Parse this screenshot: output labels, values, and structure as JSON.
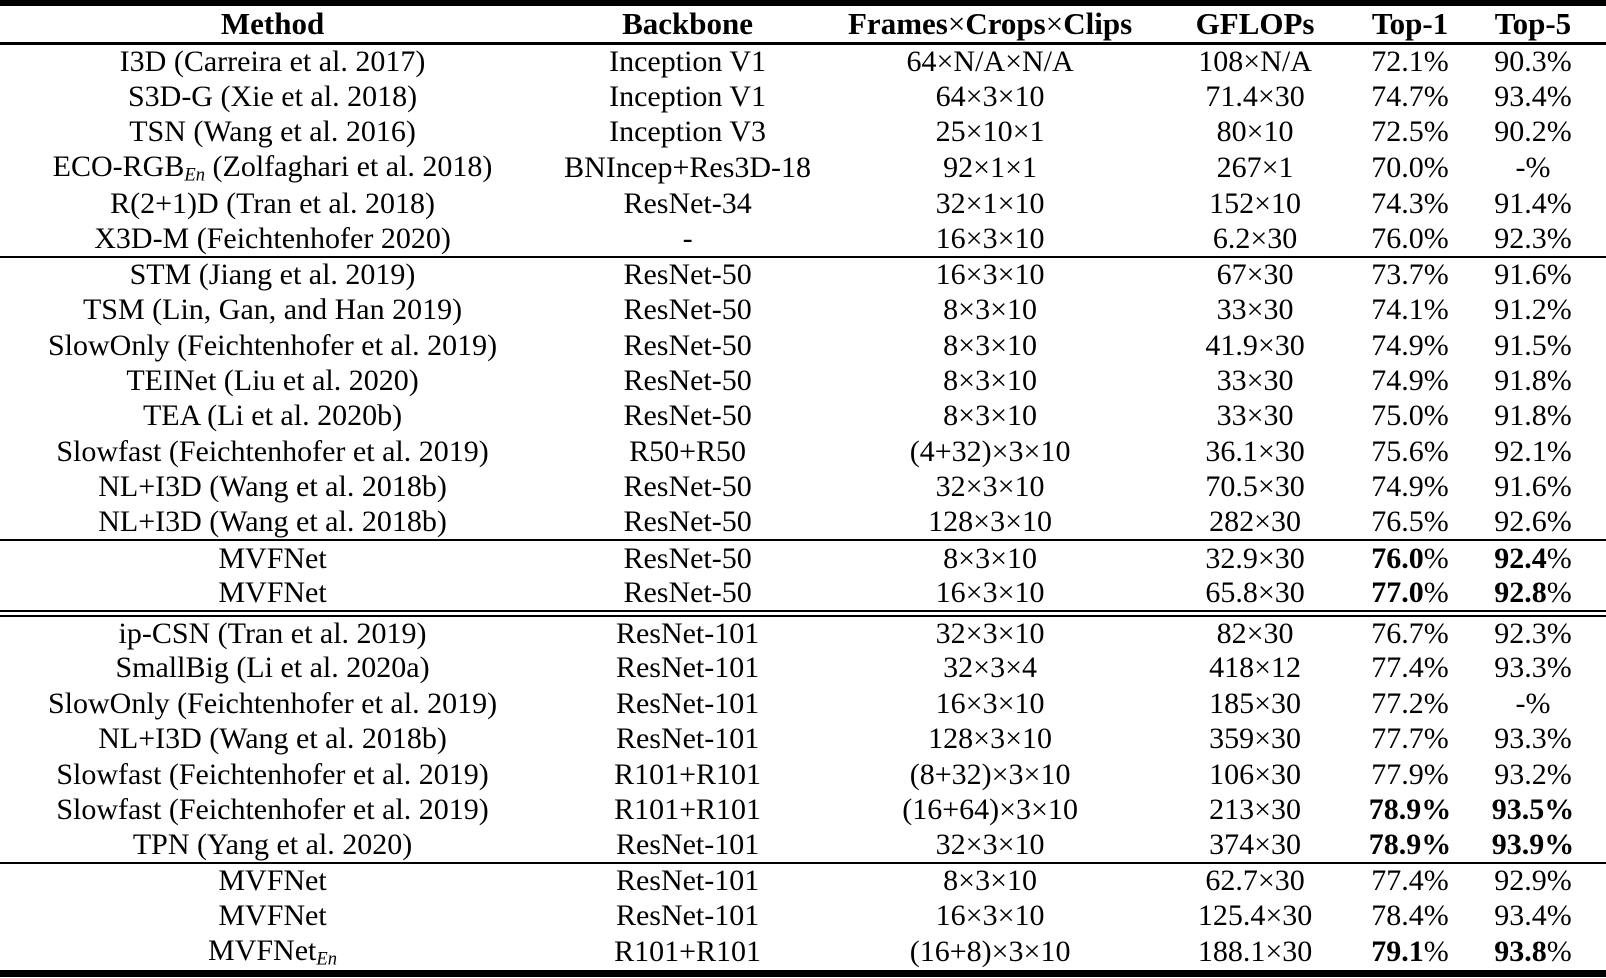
{
  "table": {
    "columns": [
      {
        "key": "method",
        "label": "Method"
      },
      {
        "key": "backbone",
        "label": "Backbone"
      },
      {
        "key": "frames",
        "label": "Frames×Crops×Clips"
      },
      {
        "key": "gflops",
        "label": "GFLOPs"
      },
      {
        "key": "top1",
        "label": "Top-1"
      },
      {
        "key": "top5",
        "label": "Top-5"
      }
    ],
    "bold_legend": {
      "0": "regular",
      "1": "accuracy digits bold, % regular",
      "2": "accuracy fully bold"
    },
    "groups": [
      {
        "rows": [
          {
            "cells": [
              "I3D (Carreira et al. 2017)",
              "Inception V1",
              "64×N/A×N/A",
              "108×N/A",
              "72.1%",
              "90.3%"
            ],
            "b": 0
          },
          {
            "cells": [
              "S3D-G (Xie et al. 2018)",
              "Inception V1",
              "64×3×10",
              "71.4×30",
              "74.7%",
              "93.4%"
            ],
            "b": 0
          },
          {
            "cells": [
              "TSN (Wang et al. 2016)",
              "Inception V3",
              "25×10×1",
              "80×10",
              "72.5%",
              "90.2%"
            ],
            "b": 0
          },
          {
            "cells": [
              "ECO-RGB_{En} (Zolfaghari et al. 2018)",
              "BNIncep+Res3D-18",
              "92×1×1",
              "267×1",
              "70.0%",
              "-%"
            ],
            "b": 0
          },
          {
            "cells": [
              "R(2+1)D (Tran et al. 2018)",
              "ResNet-34",
              "32×1×10",
              "152×10",
              "74.3%",
              "91.4%"
            ],
            "b": 0
          },
          {
            "cells": [
              "X3D-M (Feichtenhofer 2020)",
              "-",
              "16×3×10",
              "6.2×30",
              "76.0%",
              "92.3%"
            ],
            "b": 0
          }
        ]
      },
      {
        "rows": [
          {
            "cells": [
              "STM (Jiang et al. 2019)",
              "ResNet-50",
              "16×3×10",
              "67×30",
              "73.7%",
              "91.6%"
            ],
            "b": 0
          },
          {
            "cells": [
              "TSM (Lin, Gan, and Han 2019)",
              "ResNet-50",
              "8×3×10",
              "33×30",
              "74.1%",
              "91.2%"
            ],
            "b": 0
          },
          {
            "cells": [
              "SlowOnly (Feichtenhofer et al. 2019)",
              "ResNet-50",
              "8×3×10",
              "41.9×30",
              "74.9%",
              "91.5%"
            ],
            "b": 0
          },
          {
            "cells": [
              "TEINet (Liu et al. 2020)",
              "ResNet-50",
              "8×3×10",
              "33×30",
              "74.9%",
              "91.8%"
            ],
            "b": 0
          },
          {
            "cells": [
              "TEA (Li et al. 2020b)",
              "ResNet-50",
              "8×3×10",
              "33×30",
              "75.0%",
              "91.8%"
            ],
            "b": 0
          },
          {
            "cells": [
              "Slowfast (Feichtenhofer et al. 2019)",
              "R50+R50",
              "(4+32)×3×10",
              "36.1×30",
              "75.6%",
              "92.1%"
            ],
            "b": 0
          },
          {
            "cells": [
              "NL+I3D (Wang et al. 2018b)",
              "ResNet-50",
              "32×3×10",
              "70.5×30",
              "74.9%",
              "91.6%"
            ],
            "b": 0
          },
          {
            "cells": [
              "NL+I3D (Wang et al. 2018b)",
              "ResNet-50",
              "128×3×10",
              "282×30",
              "76.5%",
              "92.6%"
            ],
            "b": 0
          }
        ]
      },
      {
        "rows": [
          {
            "cells": [
              "MVFNet",
              "ResNet-50",
              "8×3×10",
              "32.9×30",
              "76.0%",
              "92.4%"
            ],
            "b": 1
          },
          {
            "cells": [
              "MVFNet",
              "ResNet-50",
              "16×3×10",
              "65.8×30",
              "77.0%",
              "92.8%"
            ],
            "b": 1
          }
        ]
      },
      {
        "double_rule_above": true,
        "rows": [
          {
            "cells": [
              "ip-CSN (Tran et al. 2019)",
              "ResNet-101",
              "32×3×10",
              "82×30",
              "76.7%",
              "92.3%"
            ],
            "b": 0
          },
          {
            "cells": [
              "SmallBig (Li et al. 2020a)",
              "ResNet-101",
              "32×3×4",
              "418×12",
              "77.4%",
              "93.3%"
            ],
            "b": 0
          },
          {
            "cells": [
              "SlowOnly (Feichtenhofer et al. 2019)",
              "ResNet-101",
              "16×3×10",
              "185×30",
              "77.2%",
              "-%"
            ],
            "b": 0
          },
          {
            "cells": [
              "NL+I3D (Wang et al. 2018b)",
              "ResNet-101",
              "128×3×10",
              "359×30",
              "77.7%",
              "93.3%"
            ],
            "b": 0
          },
          {
            "cells": [
              "Slowfast (Feichtenhofer et al. 2019)",
              "R101+R101",
              "(8+32)×3×10",
              "106×30",
              "77.9%",
              "93.2%"
            ],
            "b": 0
          },
          {
            "cells": [
              "Slowfast (Feichtenhofer et al. 2019)",
              "R101+R101",
              "(16+64)×3×10",
              "213×30",
              "78.9%",
              "93.5%"
            ],
            "b": 2
          },
          {
            "cells": [
              "TPN (Yang et al. 2020)",
              "ResNet-101",
              "32×3×10",
              "374×30",
              "78.9%",
              "93.9%"
            ],
            "b": 2
          }
        ]
      },
      {
        "rows": [
          {
            "cells": [
              "MVFNet",
              "ResNet-101",
              "8×3×10",
              "62.7×30",
              "77.4%",
              "92.9%"
            ],
            "b": 0
          },
          {
            "cells": [
              "MVFNet",
              "ResNet-101",
              "16×3×10",
              "125.4×30",
              "78.4%",
              "93.4%"
            ],
            "b": 0
          },
          {
            "cells": [
              "MVFNet_{En}",
              "R101+R101",
              "(16+8)×3×10",
              "188.1×30",
              "79.1%",
              "93.8%"
            ],
            "b": 1
          }
        ]
      }
    ]
  }
}
